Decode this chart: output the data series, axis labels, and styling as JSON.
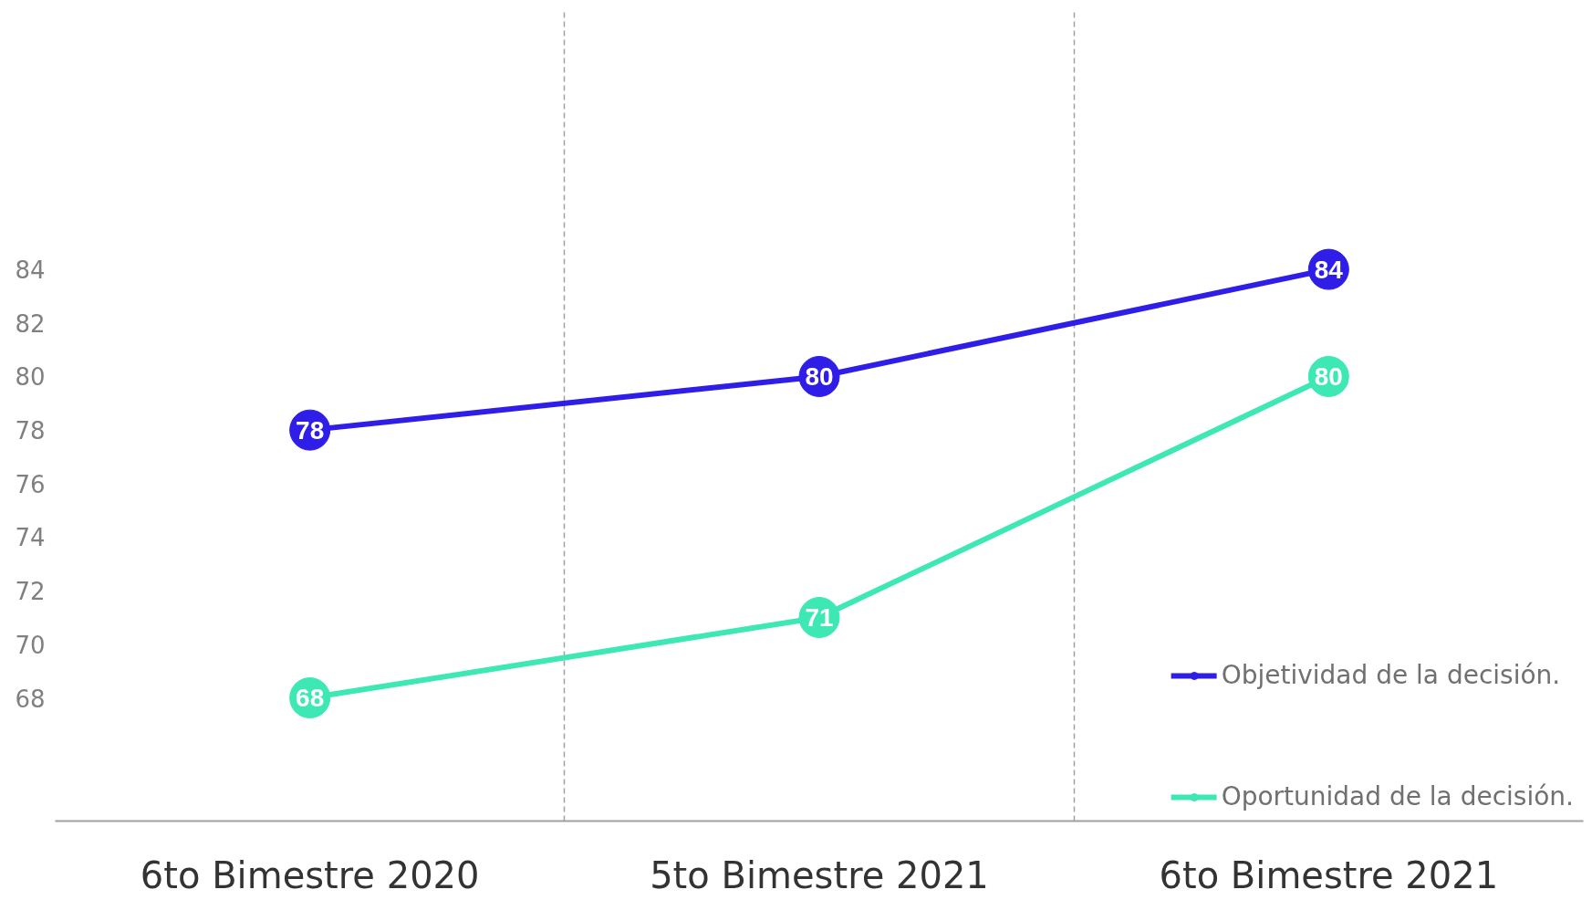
{
  "chart_data": {
    "type": "line",
    "categories": [
      "6to Bimestre 2020",
      "5to Bimestre 2021",
      "6to Bimestre 2021"
    ],
    "series": [
      {
        "name": "Objetividad de la decisión.",
        "color": "#2e1ee8",
        "values": [
          78,
          80,
          84
        ]
      },
      {
        "name": "Oportunidad de la decisión.",
        "color": "#3de8b4",
        "values": [
          68,
          71,
          80
        ]
      }
    ],
    "ylim": [
      63.4,
      93.7
    ],
    "yticks": [
      68,
      70,
      72,
      74,
      76,
      78,
      80,
      82,
      84
    ],
    "grid": "x",
    "legend": "bottom right",
    "marker": "circle",
    "data_labels": true
  }
}
